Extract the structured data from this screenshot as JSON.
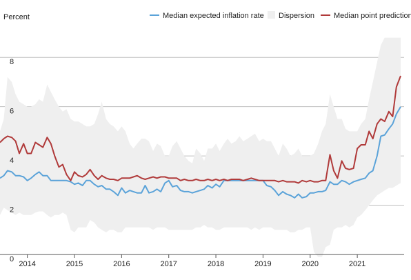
{
  "chart_data": {
    "type": "line",
    "ylabel": "Percent",
    "ylim": [
      0,
      9
    ],
    "yticks": [
      0,
      2,
      4,
      6,
      8
    ],
    "xlim": [
      2013.42,
      2021.92
    ],
    "xticks": [
      {
        "label": "2014",
        "value": 2014.0
      },
      {
        "label": "2015",
        "value": 2015.0
      },
      {
        "label": "2016",
        "value": 2016.0
      },
      {
        "label": "2017",
        "value": 2017.0
      },
      {
        "label": "2018",
        "value": 2018.0
      },
      {
        "label": "2019",
        "value": 2019.0
      },
      {
        "label": "2020",
        "value": 2020.0
      },
      {
        "label": "2021",
        "value": 2021.0
      }
    ],
    "grid": "horizontal",
    "legend": [
      "Median expected inflation rate",
      "Dispersion",
      "Median point prediction"
    ],
    "legend_position": "top",
    "colors": {
      "median_expected": "#5ba3d9",
      "dispersion": "#efefef",
      "median_point": "#b03a3a",
      "grid": "#bfbfbf"
    },
    "x": [
      2013.42,
      2013.5,
      2013.58,
      2013.67,
      2013.75,
      2013.83,
      2013.92,
      2014.0,
      2014.08,
      2014.17,
      2014.25,
      2014.33,
      2014.42,
      2014.5,
      2014.58,
      2014.67,
      2014.75,
      2014.83,
      2014.92,
      2015.0,
      2015.08,
      2015.17,
      2015.25,
      2015.33,
      2015.42,
      2015.5,
      2015.58,
      2015.67,
      2015.75,
      2015.83,
      2015.92,
      2016.0,
      2016.08,
      2016.17,
      2016.25,
      2016.33,
      2016.42,
      2016.5,
      2016.58,
      2016.67,
      2016.75,
      2016.83,
      2016.92,
      2017.0,
      2017.08,
      2017.17,
      2017.25,
      2017.33,
      2017.42,
      2017.5,
      2017.58,
      2017.67,
      2017.75,
      2017.83,
      2017.92,
      2018.0,
      2018.08,
      2018.17,
      2018.25,
      2018.33,
      2018.42,
      2018.5,
      2018.58,
      2018.67,
      2018.75,
      2018.83,
      2018.92,
      2019.0,
      2019.08,
      2019.17,
      2019.25,
      2019.33,
      2019.42,
      2019.5,
      2019.58,
      2019.67,
      2019.75,
      2019.83,
      2019.92,
      2020.0,
      2020.08,
      2020.17,
      2020.25,
      2020.33,
      2020.42,
      2020.5,
      2020.58,
      2020.67,
      2020.75,
      2020.83,
      2020.92,
      2021.0,
      2021.08,
      2021.17,
      2021.25,
      2021.33,
      2021.42,
      2021.5,
      2021.58,
      2021.67,
      2021.75,
      2021.83,
      2021.92
    ],
    "series": [
      {
        "name": "Median expected inflation rate",
        "values": [
          3.1,
          3.2,
          3.4,
          3.35,
          3.2,
          3.2,
          3.15,
          3.0,
          3.1,
          3.25,
          3.35,
          3.2,
          3.2,
          3.0,
          3.0,
          3.0,
          3.0,
          3.0,
          2.95,
          2.85,
          2.9,
          2.8,
          3.0,
          3.0,
          2.85,
          2.75,
          2.8,
          2.65,
          2.65,
          2.55,
          2.4,
          2.7,
          2.5,
          2.6,
          2.55,
          2.5,
          2.5,
          2.8,
          2.5,
          2.55,
          2.65,
          2.55,
          2.9,
          3.0,
          2.75,
          2.8,
          2.6,
          2.55,
          2.55,
          2.5,
          2.55,
          2.6,
          2.65,
          2.8,
          2.7,
          2.85,
          2.75,
          3.0,
          3.0,
          3.0,
          3.0,
          3.0,
          3.0,
          3.0,
          3.0,
          3.0,
          3.0,
          3.0,
          2.8,
          2.75,
          2.6,
          2.4,
          2.55,
          2.45,
          2.4,
          2.3,
          2.45,
          2.3,
          2.35,
          2.5,
          2.5,
          2.55,
          2.55,
          2.6,
          2.95,
          2.85,
          2.85,
          3.0,
          2.95,
          2.85,
          2.95,
          3.0,
          3.05,
          3.1,
          3.3,
          3.4,
          4.0,
          4.8,
          4.85,
          5.1,
          5.3,
          5.7,
          6.0
        ]
      },
      {
        "name": "Median point prediction",
        "values": [
          4.55,
          4.7,
          4.8,
          4.75,
          4.6,
          4.1,
          4.5,
          4.1,
          4.1,
          4.55,
          4.45,
          4.35,
          4.75,
          4.5,
          4.0,
          3.55,
          3.65,
          3.25,
          3.0,
          3.35,
          3.2,
          3.15,
          3.25,
          3.45,
          3.2,
          3.05,
          3.2,
          3.1,
          3.05,
          3.05,
          3.0,
          3.1,
          3.1,
          3.1,
          3.15,
          3.2,
          3.1,
          3.05,
          3.1,
          3.15,
          3.1,
          3.15,
          3.15,
          3.1,
          3.1,
          3.1,
          3.0,
          3.05,
          3.0,
          3.0,
          3.05,
          3.0,
          3.0,
          3.05,
          3.0,
          3.05,
          3.0,
          3.05,
          3.0,
          3.05,
          3.05,
          3.05,
          3.0,
          3.05,
          3.1,
          3.05,
          3.0,
          3.0,
          3.0,
          3.0,
          3.0,
          2.95,
          3.0,
          2.95,
          2.95,
          2.95,
          2.9,
          3.0,
          2.95,
          3.0,
          2.95,
          2.95,
          3.0,
          3.0,
          4.05,
          3.4,
          3.1,
          3.8,
          3.5,
          3.45,
          3.5,
          4.3,
          4.45,
          4.45,
          5.0,
          4.7,
          5.3,
          5.5,
          5.4,
          5.8,
          5.6,
          6.8,
          7.25
        ]
      },
      {
        "name": "Dispersion",
        "upper": [
          5.0,
          5.5,
          7.2,
          7.0,
          6.5,
          6.2,
          6.1,
          6.0,
          6.0,
          6.1,
          6.3,
          6.2,
          6.9,
          6.6,
          6.3,
          6.0,
          5.8,
          5.9,
          5.5,
          5.4,
          5.4,
          5.3,
          5.2,
          5.2,
          5.3,
          5.7,
          6.2,
          5.5,
          5.3,
          5.2,
          5.0,
          5.2,
          5.0,
          4.5,
          4.3,
          4.5,
          4.7,
          4.7,
          4.6,
          4.2,
          4.5,
          4.4,
          4.0,
          4.0,
          4.4,
          4.6,
          4.3,
          4.0,
          3.8,
          3.7,
          4.3,
          4.1,
          3.8,
          4.3,
          4.3,
          4.5,
          4.2,
          4.5,
          4.7,
          4.5,
          4.6,
          4.8,
          4.6,
          4.7,
          4.8,
          4.9,
          4.6,
          4.7,
          4.6,
          4.6,
          4.3,
          4.0,
          4.5,
          4.3,
          4.0,
          4.1,
          4.3,
          4.0,
          4.0,
          4.0,
          4.1,
          4.5,
          5.0,
          5.3,
          6.5,
          6.0,
          5.5,
          5.5,
          5.1,
          5.0,
          5.0,
          5.0,
          5.3,
          5.5,
          6.3,
          7.0,
          7.8,
          8.5,
          8.8,
          8.8,
          8.8,
          8.8,
          8.8
        ],
        "lower": [
          1.6,
          1.9,
          1.8,
          1.7,
          1.6,
          1.7,
          1.6,
          1.6,
          1.6,
          1.7,
          1.75,
          1.75,
          1.6,
          1.5,
          1.6,
          1.6,
          1.7,
          1.6,
          1.0,
          0.9,
          1.1,
          1.1,
          1.1,
          1.4,
          1.3,
          1.1,
          1.0,
          0.9,
          1.0,
          1.0,
          0.9,
          0.9,
          1.1,
          1.1,
          1.1,
          1.1,
          1.1,
          1.1,
          1.1,
          1.0,
          1.1,
          1.1,
          1.1,
          1.0,
          1.0,
          1.0,
          1.0,
          1.0,
          1.0,
          1.0,
          1.1,
          1.1,
          1.2,
          1.1,
          1.1,
          1.0,
          1.0,
          1.1,
          1.1,
          1.1,
          1.1,
          1.1,
          1.1,
          1.1,
          1.0,
          1.1,
          1.0,
          1.1,
          1.1,
          1.1,
          1.0,
          1.0,
          1.0,
          1.0,
          0.9,
          0.9,
          1.0,
          1.0,
          1.1,
          1.1,
          0.1,
          -0.1,
          -0.1,
          0.3,
          0.4,
          1.0,
          1.1,
          1.1,
          1.2,
          1.1,
          1.2,
          1.5,
          1.6,
          1.8,
          2.0,
          2.2,
          2.4,
          2.5,
          2.6,
          2.7,
          2.7,
          2.8,
          2.9
        ]
      }
    ]
  }
}
